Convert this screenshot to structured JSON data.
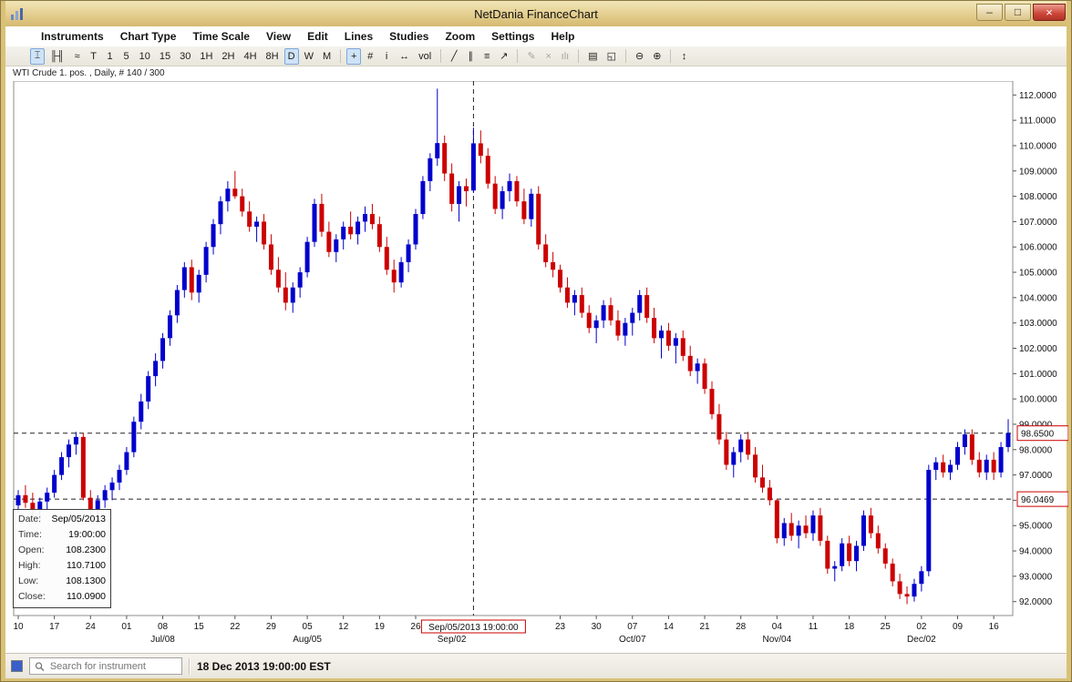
{
  "window": {
    "title": "NetDania FinanceChart",
    "minimize_glyph": "–",
    "maximize_glyph": "□",
    "close_glyph": "×"
  },
  "menubar": {
    "items": [
      "Instruments",
      "Chart Type",
      "Time Scale",
      "View",
      "Edit",
      "Lines",
      "Studies",
      "Zoom",
      "Settings",
      "Help"
    ]
  },
  "toolbar": {
    "buttons": [
      {
        "name": "candlestick-chart-button",
        "glyph": "⌶",
        "selected": true
      },
      {
        "name": "ohlc-bar-chart-button",
        "glyph": "╟╢"
      },
      {
        "name": "line-chart-button",
        "glyph": "≈"
      },
      {
        "name": "timescale-tick-button",
        "glyph": "T"
      },
      {
        "name": "timescale-1min-button",
        "glyph": "1"
      },
      {
        "name": "timescale-5min-button",
        "glyph": "5"
      },
      {
        "name": "timescale-10min-button",
        "glyph": "10"
      },
      {
        "name": "timescale-15min-button",
        "glyph": "15"
      },
      {
        "name": "timescale-30min-button",
        "glyph": "30"
      },
      {
        "name": "timescale-1h-button",
        "glyph": "1H"
      },
      {
        "name": "timescale-2h-button",
        "glyph": "2H"
      },
      {
        "name": "timescale-4h-button",
        "glyph": "4H"
      },
      {
        "name": "timescale-8h-button",
        "glyph": "8H"
      },
      {
        "name": "timescale-daily-button",
        "glyph": "D",
        "selected": true
      },
      {
        "name": "timescale-weekly-button",
        "glyph": "W"
      },
      {
        "name": "timescale-monthly-button",
        "glyph": "M"
      },
      {
        "sep": true
      },
      {
        "name": "crosshair-button",
        "glyph": "+",
        "selected": true
      },
      {
        "name": "grid-button",
        "glyph": "#"
      },
      {
        "name": "info-button",
        "glyph": "i"
      },
      {
        "name": "scroll-horizontal-button",
        "glyph": "↔"
      },
      {
        "name": "volume-button",
        "glyph": "vol"
      },
      {
        "sep": true
      },
      {
        "name": "trend-line-button",
        "glyph": "╱"
      },
      {
        "name": "channel-line-button",
        "glyph": "∥"
      },
      {
        "name": "horizontal-lines-button",
        "glyph": "≡"
      },
      {
        "name": "pointer-button",
        "glyph": "↗"
      },
      {
        "sep": true
      },
      {
        "name": "edit-line-button",
        "glyph": "✎",
        "disabled": true
      },
      {
        "name": "delete-line-button",
        "glyph": "×",
        "disabled": true
      },
      {
        "name": "show-bars-button",
        "glyph": "ılı",
        "disabled": true
      },
      {
        "sep": true
      },
      {
        "name": "print-button",
        "glyph": "▤"
      },
      {
        "name": "print-preview-button",
        "glyph": "◱"
      },
      {
        "sep": true
      },
      {
        "name": "zoom-out-button",
        "glyph": "⊖"
      },
      {
        "name": "zoom-in-button",
        "glyph": "⊕"
      },
      {
        "sep": true
      },
      {
        "name": "vertical-scale-button",
        "glyph": "↕"
      }
    ]
  },
  "statusbar": {
    "search_placeholder": "Search for instrument",
    "clock": "18 Dec 2013 19:00:00 EST"
  },
  "chart_data": {
    "type": "candlestick",
    "legend": "WTI Crude 1. pos. , Daily, # 140 / 300",
    "symbol": "WTI Crude 1. pos.",
    "timeframe": "Daily",
    "bars_shown": "140 / 300",
    "ylim": [
      91.45,
      112.55
    ],
    "y_axis": {
      "min": 92,
      "max": 112,
      "step": 1,
      "decimals": 4
    },
    "colors": {
      "up": "#0000cc",
      "down": "#cc0000",
      "crosshair": "#222222",
      "label_box": "#cc0000"
    },
    "x_ticks": [
      [
        0,
        "10"
      ],
      [
        5,
        "17"
      ],
      [
        10,
        "24"
      ],
      [
        15,
        "01"
      ],
      [
        20,
        "08"
      ],
      [
        25,
        "15"
      ],
      [
        30,
        "22"
      ],
      [
        35,
        "29"
      ],
      [
        40,
        "05"
      ],
      [
        45,
        "12"
      ],
      [
        50,
        "19"
      ],
      [
        55,
        "26"
      ],
      [
        75,
        "23"
      ],
      [
        80,
        "30"
      ],
      [
        85,
        "07"
      ],
      [
        90,
        "14"
      ],
      [
        95,
        "21"
      ],
      [
        100,
        "28"
      ],
      [
        105,
        "04"
      ],
      [
        110,
        "11"
      ],
      [
        115,
        "18"
      ],
      [
        120,
        "25"
      ],
      [
        125,
        "02"
      ],
      [
        130,
        "09"
      ],
      [
        135,
        "16"
      ]
    ],
    "month_labels": [
      [
        20,
        "Jul/08"
      ],
      [
        40,
        "Aug/05"
      ],
      [
        60,
        "Sep/02"
      ],
      [
        85,
        "Oct/07"
      ],
      [
        105,
        "Nov/04"
      ],
      [
        125,
        "Dec/02"
      ]
    ],
    "crosshair": {
      "index": 63,
      "label": "Sep/05/2013 19:00:00",
      "price": 96.0469,
      "price_label": "96.0469"
    },
    "last_price": {
      "value": 98.65,
      "label": "98.6500"
    },
    "tooltip_rows": [
      [
        "Date:",
        "Sep/05/2013"
      ],
      [
        "Time:",
        "19:00:00"
      ],
      [
        "Open:",
        "108.2300"
      ],
      [
        "High:",
        "110.7100"
      ],
      [
        "Low:",
        "108.1300"
      ],
      [
        "Close:",
        "110.0900"
      ]
    ],
    "candles": [
      [
        95.8,
        96.4,
        95.5,
        96.2
      ],
      [
        96.2,
        96.6,
        95.7,
        95.9
      ],
      [
        95.9,
        96.3,
        95.3,
        95.6
      ],
      [
        95.6,
        96.1,
        95.2,
        95.95
      ],
      [
        95.95,
        96.5,
        95.6,
        96.3
      ],
      [
        96.3,
        97.2,
        96.1,
        97.0
      ],
      [
        97.0,
        97.9,
        96.8,
        97.7
      ],
      [
        97.7,
        98.4,
        97.3,
        98.2
      ],
      [
        98.2,
        98.7,
        97.8,
        98.5
      ],
      [
        98.5,
        98.65,
        96.0,
        96.1
      ],
      [
        96.1,
        96.4,
        95.3,
        95.6
      ],
      [
        95.6,
        96.2,
        95.2,
        96.0
      ],
      [
        96.0,
        96.6,
        95.7,
        96.4
      ],
      [
        96.4,
        96.9,
        96.0,
        96.7
      ],
      [
        96.7,
        97.4,
        96.4,
        97.2
      ],
      [
        97.2,
        98.1,
        97.0,
        97.9
      ],
      [
        97.9,
        99.3,
        97.7,
        99.1
      ],
      [
        99.1,
        100.2,
        98.8,
        99.9
      ],
      [
        99.9,
        101.1,
        99.6,
        100.9
      ],
      [
        100.9,
        101.8,
        100.5,
        101.5
      ],
      [
        101.5,
        102.6,
        101.2,
        102.4
      ],
      [
        102.4,
        103.5,
        102.1,
        103.3
      ],
      [
        103.3,
        104.5,
        103.0,
        104.3
      ],
      [
        104.3,
        105.4,
        104.0,
        105.2
      ],
      [
        105.2,
        105.5,
        103.9,
        104.2
      ],
      [
        104.2,
        105.1,
        103.8,
        104.9
      ],
      [
        104.9,
        106.2,
        104.6,
        106.0
      ],
      [
        106.0,
        107.1,
        105.7,
        106.9
      ],
      [
        106.9,
        108.0,
        106.5,
        107.8
      ],
      [
        107.8,
        108.6,
        107.4,
        108.3
      ],
      [
        108.3,
        109.0,
        107.9,
        108.0
      ],
      [
        108.0,
        108.3,
        107.2,
        107.4
      ],
      [
        107.4,
        107.8,
        106.6,
        106.8
      ],
      [
        106.8,
        107.2,
        106.2,
        107.0
      ],
      [
        107.0,
        107.3,
        105.9,
        106.1
      ],
      [
        106.1,
        106.5,
        104.9,
        105.1
      ],
      [
        105.1,
        105.6,
        104.2,
        104.4
      ],
      [
        104.4,
        105.0,
        103.5,
        103.8
      ],
      [
        103.8,
        104.6,
        103.4,
        104.4
      ],
      [
        104.4,
        105.2,
        104.0,
        105.0
      ],
      [
        105.0,
        106.4,
        104.8,
        106.2
      ],
      [
        106.2,
        107.9,
        106.0,
        107.7
      ],
      [
        107.7,
        108.1,
        106.4,
        106.6
      ],
      [
        106.6,
        107.0,
        105.6,
        105.8
      ],
      [
        105.8,
        106.5,
        105.4,
        106.3
      ],
      [
        106.3,
        107.0,
        105.9,
        106.8
      ],
      [
        106.8,
        107.4,
        106.3,
        106.5
      ],
      [
        106.5,
        107.2,
        106.1,
        107.0
      ],
      [
        107.0,
        107.6,
        106.6,
        107.3
      ],
      [
        107.3,
        107.7,
        106.7,
        106.9
      ],
      [
        106.9,
        107.2,
        105.8,
        106.0
      ],
      [
        106.0,
        106.4,
        104.9,
        105.1
      ],
      [
        105.1,
        105.5,
        104.2,
        104.6
      ],
      [
        104.6,
        105.6,
        104.4,
        105.4
      ],
      [
        105.4,
        106.3,
        105.0,
        106.1
      ],
      [
        106.1,
        107.5,
        105.9,
        107.3
      ],
      [
        107.3,
        108.8,
        107.1,
        108.6
      ],
      [
        108.6,
        109.7,
        108.2,
        109.5
      ],
      [
        109.5,
        112.25,
        109.2,
        110.1
      ],
      [
        110.1,
        110.4,
        108.6,
        108.9
      ],
      [
        108.9,
        109.3,
        107.4,
        107.7
      ],
      [
        107.7,
        108.6,
        107.0,
        108.4
      ],
      [
        108.4,
        108.7,
        107.6,
        108.2
      ],
      [
        108.23,
        110.71,
        108.13,
        110.09
      ],
      [
        110.09,
        110.6,
        109.3,
        109.6
      ],
      [
        109.6,
        109.9,
        108.3,
        108.5
      ],
      [
        108.5,
        108.8,
        107.3,
        107.5
      ],
      [
        107.5,
        108.4,
        107.1,
        108.2
      ],
      [
        108.2,
        108.9,
        107.8,
        108.6
      ],
      [
        108.6,
        108.8,
        107.6,
        107.8
      ],
      [
        107.8,
        108.3,
        106.9,
        107.1
      ],
      [
        107.1,
        108.3,
        106.8,
        108.1
      ],
      [
        108.1,
        108.4,
        105.9,
        106.1
      ],
      [
        106.1,
        106.5,
        105.2,
        105.4
      ],
      [
        105.4,
        105.8,
        104.8,
        105.1
      ],
      [
        105.1,
        105.3,
        104.2,
        104.4
      ],
      [
        104.4,
        104.8,
        103.6,
        103.8
      ],
      [
        103.8,
        104.3,
        103.3,
        104.1
      ],
      [
        104.1,
        104.4,
        103.2,
        103.4
      ],
      [
        103.4,
        103.7,
        102.6,
        102.8
      ],
      [
        102.8,
        103.3,
        102.2,
        103.1
      ],
      [
        103.1,
        103.9,
        102.8,
        103.7
      ],
      [
        103.7,
        104.0,
        102.9,
        103.1
      ],
      [
        103.1,
        103.5,
        102.3,
        102.5
      ],
      [
        102.5,
        103.2,
        102.1,
        103.0
      ],
      [
        103.0,
        103.6,
        102.5,
        103.4
      ],
      [
        103.4,
        104.3,
        103.1,
        104.1
      ],
      [
        104.1,
        104.4,
        103.0,
        103.2
      ],
      [
        103.2,
        103.6,
        102.2,
        102.4
      ],
      [
        102.4,
        102.9,
        101.6,
        102.7
      ],
      [
        102.7,
        103.0,
        101.9,
        102.1
      ],
      [
        102.1,
        102.6,
        101.4,
        102.4
      ],
      [
        102.4,
        102.7,
        101.5,
        101.7
      ],
      [
        101.7,
        102.1,
        100.9,
        101.1
      ],
      [
        101.1,
        101.6,
        100.6,
        101.4
      ],
      [
        101.4,
        101.6,
        100.2,
        100.4
      ],
      [
        100.4,
        100.7,
        99.2,
        99.4
      ],
      [
        99.4,
        99.8,
        98.2,
        98.4
      ],
      [
        98.4,
        98.7,
        97.2,
        97.4
      ],
      [
        97.4,
        98.1,
        96.9,
        97.9
      ],
      [
        97.9,
        98.6,
        97.5,
        98.4
      ],
      [
        98.4,
        98.7,
        97.6,
        97.8
      ],
      [
        97.8,
        98.1,
        96.7,
        96.9
      ],
      [
        96.9,
        97.4,
        96.3,
        96.5
      ],
      [
        96.5,
        96.8,
        95.8,
        96.0
      ],
      [
        96.0,
        96.05,
        94.3,
        94.5
      ],
      [
        94.5,
        95.3,
        94.2,
        95.1
      ],
      [
        95.1,
        95.5,
        94.4,
        94.6
      ],
      [
        94.6,
        95.2,
        94.1,
        95.0
      ],
      [
        95.0,
        95.4,
        94.5,
        94.7
      ],
      [
        94.7,
        95.6,
        94.4,
        95.4
      ],
      [
        95.4,
        95.7,
        94.2,
        94.4
      ],
      [
        94.4,
        94.6,
        93.1,
        93.3
      ],
      [
        93.3,
        93.6,
        92.8,
        93.4
      ],
      [
        93.4,
        94.5,
        93.2,
        94.3
      ],
      [
        94.3,
        94.6,
        93.4,
        93.6
      ],
      [
        93.6,
        94.4,
        93.2,
        94.2
      ],
      [
        94.2,
        95.6,
        94.0,
        95.4
      ],
      [
        95.4,
        95.7,
        94.5,
        94.7
      ],
      [
        94.7,
        95.0,
        93.9,
        94.1
      ],
      [
        94.1,
        94.3,
        93.3,
        93.5
      ],
      [
        93.5,
        93.7,
        92.6,
        92.8
      ],
      [
        92.8,
        93.1,
        92.1,
        92.3
      ],
      [
        92.3,
        92.6,
        91.9,
        92.2
      ],
      [
        92.2,
        92.9,
        92.0,
        92.7
      ],
      [
        92.7,
        93.4,
        92.4,
        93.2
      ],
      [
        93.2,
        97.4,
        93.0,
        97.2
      ],
      [
        97.2,
        97.7,
        96.8,
        97.5
      ],
      [
        97.5,
        97.8,
        96.9,
        97.1
      ],
      [
        97.1,
        97.6,
        96.8,
        97.4
      ],
      [
        97.4,
        98.3,
        97.2,
        98.1
      ],
      [
        98.1,
        98.8,
        97.8,
        98.6
      ],
      [
        98.6,
        98.8,
        97.4,
        97.6
      ],
      [
        97.6,
        97.9,
        96.9,
        97.1
      ],
      [
        97.1,
        97.8,
        96.8,
        97.6
      ],
      [
        97.6,
        97.9,
        96.8,
        97.1
      ],
      [
        97.1,
        98.3,
        96.9,
        98.1
      ],
      [
        98.1,
        99.2,
        97.9,
        98.65
      ]
    ]
  }
}
